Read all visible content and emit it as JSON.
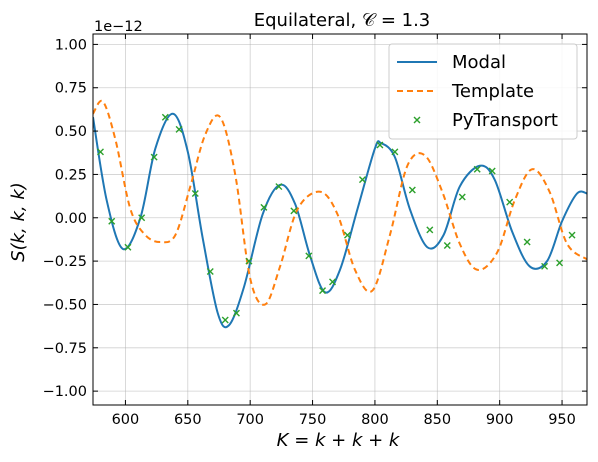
{
  "chart_data": {
    "type": "line",
    "title": "Equilateral, 𝒞 = 1.3",
    "xlabel": "K = k + k + k",
    "ylabel": "S(k, k, k)",
    "offset_text": "1e−12",
    "xlim": [
      574,
      970
    ],
    "ylim": [
      -1.08,
      1.06
    ],
    "x_ticks": [
      600,
      650,
      700,
      750,
      800,
      850,
      900,
      950
    ],
    "x_tick_labels": [
      "600",
      "650",
      "700",
      "750",
      "800",
      "850",
      "900",
      "950"
    ],
    "y_ticks": [
      -1.0,
      -0.75,
      -0.5,
      -0.25,
      0.0,
      0.25,
      0.5,
      0.75,
      1.0
    ],
    "y_tick_labels": [
      "−1.00",
      "−0.75",
      "−0.50",
      "−0.25",
      "0.00",
      "0.25",
      "0.50",
      "0.75",
      "1.00"
    ],
    "grid": true,
    "legend_placement": "top-right",
    "colors": {
      "modal": "#1f77b4",
      "template": "#ff7f0e",
      "pytransport": "#2ca02c"
    },
    "series": [
      {
        "name": "Modal",
        "style": "solid",
        "x": [
          574,
          585,
          598,
          612,
          624,
          638,
          650,
          662,
          674,
          683,
          695,
          710,
          724,
          736,
          748,
          760,
          772,
          786,
          800,
          805,
          816,
          828,
          842,
          855,
          868,
          884,
          896,
          910,
          924,
          938,
          950,
          962,
          970
        ],
        "y": [
          0.58,
          0.1,
          -0.18,
          0.0,
          0.4,
          0.6,
          0.38,
          -0.12,
          -0.55,
          -0.62,
          -0.4,
          0.02,
          0.19,
          0.08,
          -0.22,
          -0.43,
          -0.3,
          0.05,
          0.4,
          0.43,
          0.35,
          0.05,
          -0.17,
          -0.1,
          0.18,
          0.3,
          0.22,
          -0.08,
          -0.28,
          -0.25,
          -0.02,
          0.14,
          0.14
        ]
      },
      {
        "name": "Template",
        "style": "dashed",
        "x": [
          574,
          582,
          592,
          604,
          616,
          628,
          640,
          652,
          664,
          676,
          688,
          700,
          712,
          724,
          738,
          756,
          770,
          784,
          798,
          812,
          826,
          840,
          854,
          868,
          882,
          898,
          912,
          926,
          940,
          954,
          970
        ],
        "y": [
          0.6,
          0.67,
          0.45,
          0.05,
          -0.1,
          -0.14,
          -0.1,
          0.18,
          0.48,
          0.58,
          0.25,
          -0.35,
          -0.5,
          -0.28,
          0.05,
          0.15,
          0.02,
          -0.3,
          -0.42,
          -0.1,
          0.3,
          0.36,
          0.15,
          -0.15,
          -0.3,
          -0.2,
          0.1,
          0.28,
          0.15,
          -0.15,
          -0.24
        ]
      },
      {
        "name": "PyTransport",
        "style": "markers",
        "x": [
          580,
          589,
          602,
          613,
          623,
          632,
          643,
          656,
          668,
          680,
          689,
          699,
          711,
          723,
          735,
          747,
          758,
          766,
          778,
          790,
          804,
          816,
          830,
          844,
          858,
          870,
          882,
          894,
          908,
          922,
          936,
          948,
          958
        ],
        "y": [
          0.38,
          -0.02,
          -0.17,
          0.0,
          0.35,
          0.58,
          0.51,
          0.14,
          -0.31,
          -0.59,
          -0.55,
          -0.25,
          0.06,
          0.18,
          0.04,
          -0.22,
          -0.42,
          -0.37,
          -0.1,
          0.22,
          0.42,
          0.38,
          0.16,
          -0.07,
          -0.16,
          0.12,
          0.28,
          0.27,
          0.09,
          -0.14,
          -0.28,
          -0.26,
          -0.1
        ]
      }
    ]
  }
}
